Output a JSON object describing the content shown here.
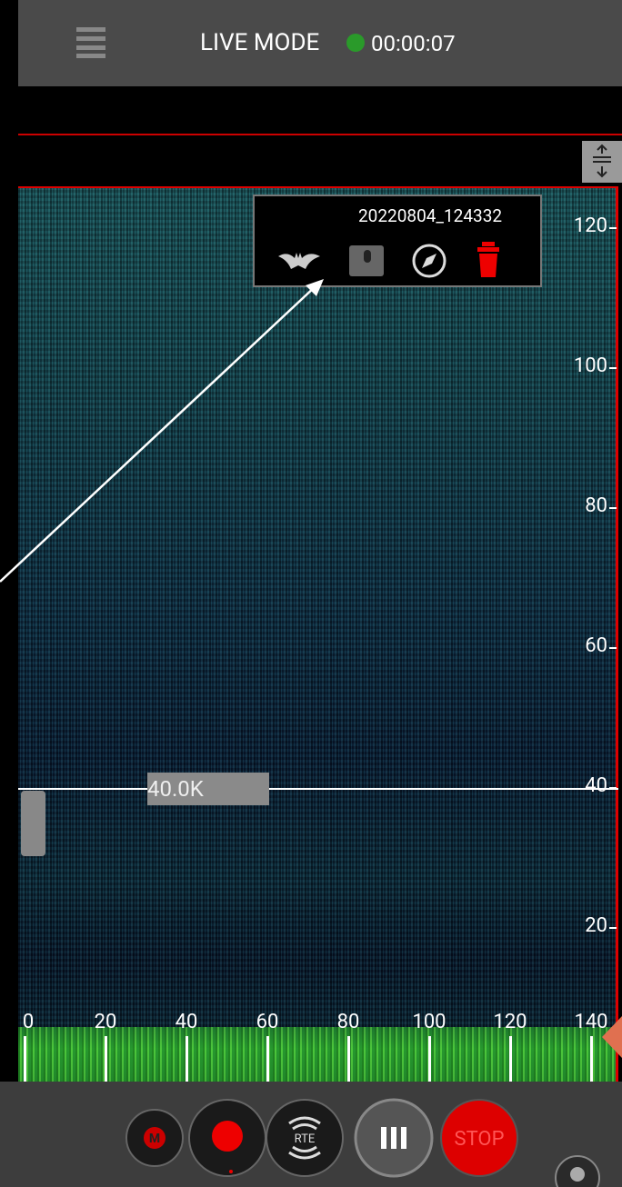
{
  "header": {
    "title": "LIVE MODE",
    "timer": "00:00:07"
  },
  "recording": {
    "filename": "20220804_124332"
  },
  "spectrogram": {
    "marker_label": "40.0K",
    "y_labels": [
      "120",
      "100",
      "80",
      "60",
      "40",
      "20"
    ],
    "x_labels": [
      "0",
      "20",
      "40",
      "60",
      "80",
      "100",
      "120",
      "140"
    ]
  },
  "controls": {
    "mark": "M",
    "rte": "RTE",
    "stop": "STOP"
  }
}
